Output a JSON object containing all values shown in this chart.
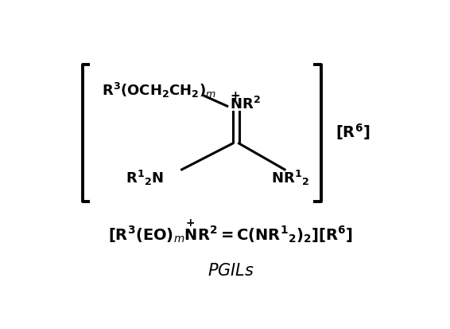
{
  "bg_color": "#ffffff",
  "fig_width": 5.66,
  "fig_height": 4.14,
  "dpi": 100
}
